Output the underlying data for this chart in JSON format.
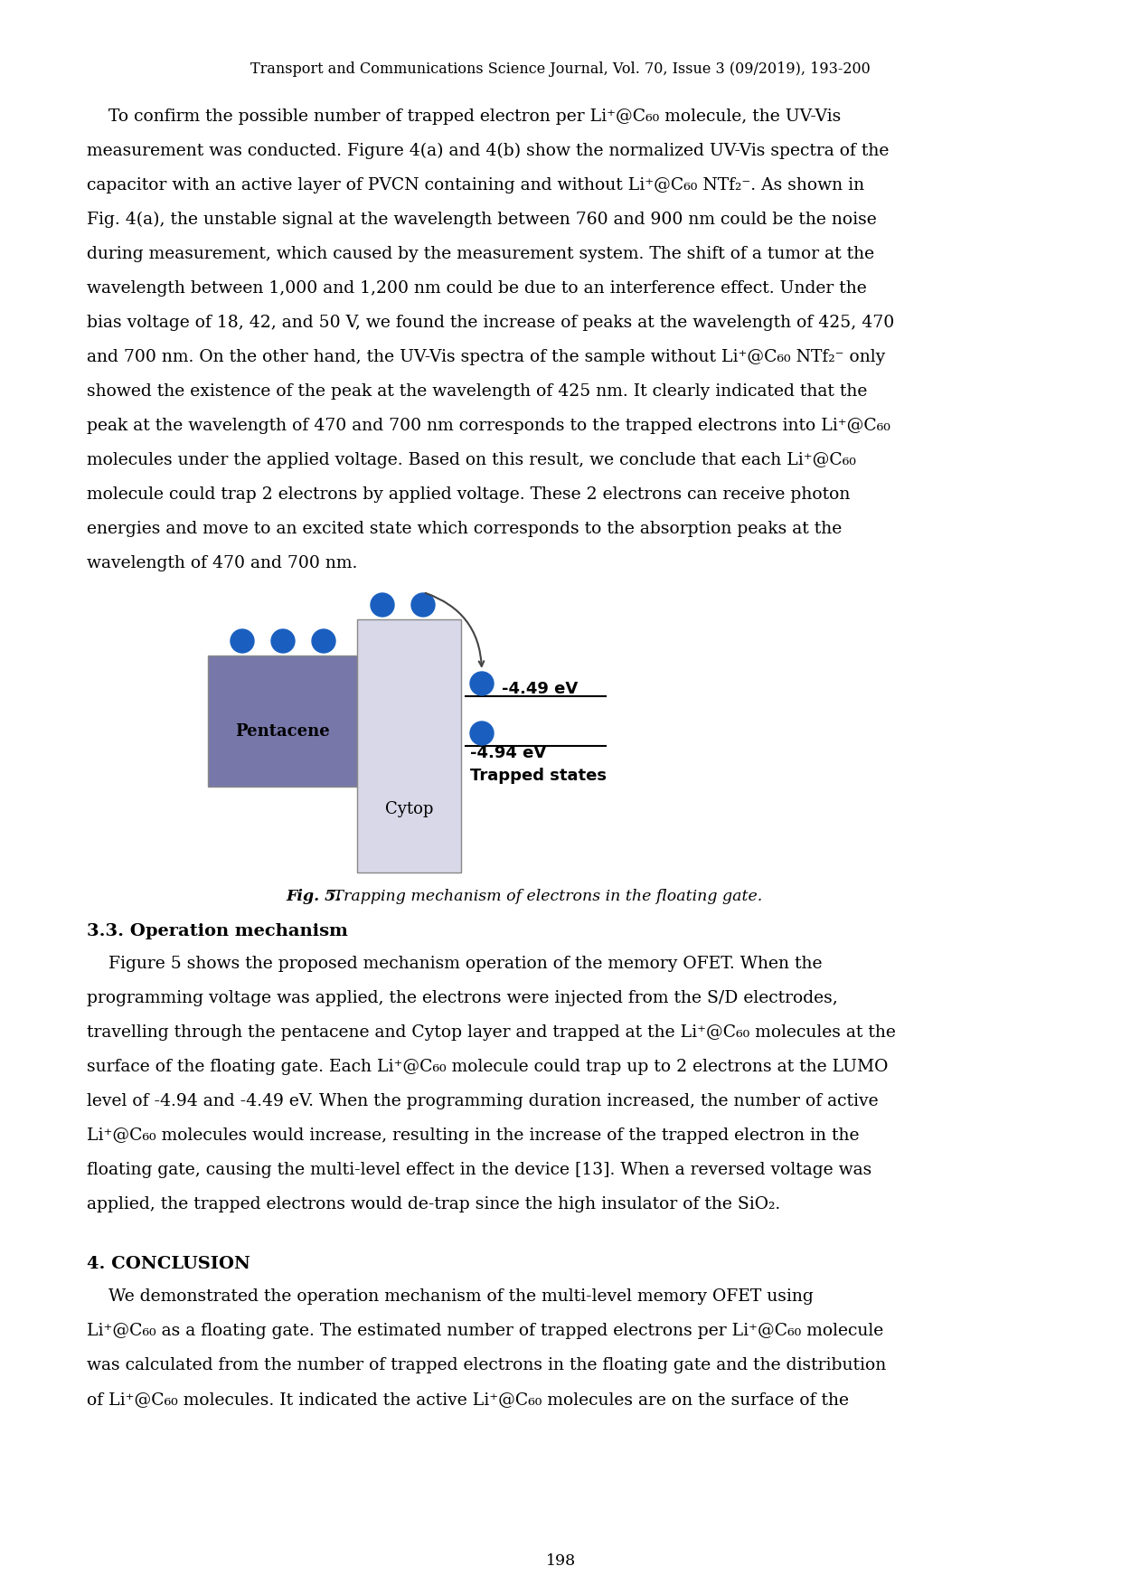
{
  "journal_header": "Transport and Communications Science Journal, Vol. 70, Issue 3 (09/2019), 193-200",
  "p1_lines": [
    "    To confirm the possible number of trapped electron per Li⁺@C₆₀ molecule, the UV-Vis",
    "measurement was conducted. Figure 4(a) and 4(b) show the normalized UV-Vis spectra of the",
    "capacitor with an active layer of PVCN containing and without Li⁺@C₆₀ NTf₂⁻. As shown in",
    "Fig. 4(a), the unstable signal at the wavelength between 760 and 900 nm could be the noise",
    "during measurement, which caused by the measurement system. The shift of a tumor at the",
    "wavelength between 1,000 and 1,200 nm could be due to an interference effect. Under the",
    "bias voltage of 18, 42, and 50 V, we found the increase of peaks at the wavelength of 425, 470",
    "and 700 nm. On the other hand, the UV-Vis spectra of the sample without Li⁺@C₆₀ NTf₂⁻ only",
    "showed the existence of the peak at the wavelength of 425 nm. It clearly indicated that the",
    "peak at the wavelength of 470 and 700 nm corresponds to the trapped electrons into Li⁺@C₆₀",
    "molecules under the applied voltage. Based on this result, we conclude that each Li⁺@C₆₀",
    "molecule could trap 2 electrons by applied voltage. These 2 electrons can receive photon",
    "energies and move to an excited state which corresponds to the absorption peaks at the",
    "wavelength of 470 and 700 nm."
  ],
  "p2_lines": [
    "    Figure 5 shows the proposed mechanism operation of the memory OFET. When the",
    "programming voltage was applied, the electrons were injected from the S/D electrodes,",
    "travelling through the pentacene and Cytop layer and trapped at the Li⁺@C₆₀ molecules at the",
    "surface of the floating gate. Each Li⁺@C₆₀ molecule could trap up to 2 electrons at the LUMO",
    "level of -4.94 and -4.49 eV. When the programming duration increased, the number of active",
    "Li⁺@C₆₀ molecules would increase, resulting in the increase of the trapped electron in the",
    "floating gate, causing the multi-level effect in the device [13]. When a reversed voltage was",
    "applied, the trapped electrons would de-trap since the high insulator of the SiO₂."
  ],
  "p3_lines": [
    "    We demonstrated the operation mechanism of the multi-level memory OFET using",
    "Li⁺@C₆₀ as a floating gate. The estimated number of trapped electrons per Li⁺@C₆₀ molecule",
    "was calculated from the number of trapped electrons in the floating gate and the distribution",
    "of Li⁺@C₆₀ molecules. It indicated the active Li⁺@C₆₀ molecules are on the surface of the"
  ],
  "fig_caption_bold": "Fig. 5.",
  "fig_caption_rest": " Trapping mechanism of electrons in the floating gate.",
  "section33": "3.3. Operation mechanism",
  "section4": "4. CONCLUSION",
  "page_number": "198",
  "pentacene_color": "#7777aa",
  "cytop_color": "#d8d8e8",
  "electron_color": "#1a5fbf",
  "bg_color": "#ffffff"
}
